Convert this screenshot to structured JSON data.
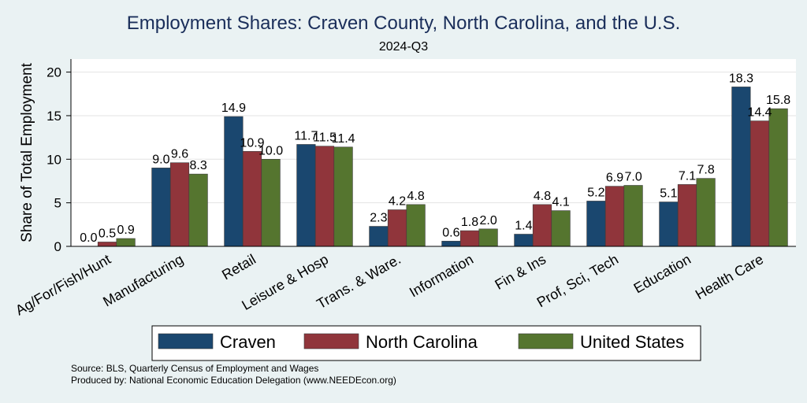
{
  "chart_data": {
    "type": "bar",
    "title": "Employment Shares: Craven County, North Carolina, and the U.S.",
    "subtitle": "2024-Q3",
    "ylabel": "Share of Total Employment",
    "xlabel": "",
    "ylim": [
      0,
      21.5
    ],
    "yticks": [
      0,
      5,
      10,
      15,
      20
    ],
    "categories": [
      "Ag/For/Fish/Hunt",
      "Manufacturing",
      "Retail",
      "Leisure & Hosp",
      "Trans. & Ware.",
      "Information",
      "Fin & Ins",
      "Prof, Sci, Tech",
      "Education",
      "Health Care"
    ],
    "series": [
      {
        "name": "Craven",
        "color": "#1a476f",
        "values": [
          0.0,
          9.0,
          14.9,
          11.7,
          2.3,
          0.6,
          1.4,
          5.2,
          5.1,
          18.3
        ]
      },
      {
        "name": "North Carolina",
        "color": "#90353b",
        "values": [
          0.5,
          9.6,
          10.9,
          11.5,
          4.2,
          1.8,
          4.8,
          6.9,
          7.1,
          14.4
        ]
      },
      {
        "name": "United States",
        "color": "#55752f",
        "values": [
          0.9,
          8.3,
          10.0,
          11.4,
          4.8,
          2.0,
          4.1,
          7.0,
          7.8,
          15.8
        ]
      }
    ],
    "grid": true,
    "legend": "bottom"
  },
  "notes": {
    "source": "Source: BLS, Quarterly Census of Employment and Wages",
    "produced": "Produced by: National Economic Education Delegation (www.NEEDEcon.org)"
  }
}
